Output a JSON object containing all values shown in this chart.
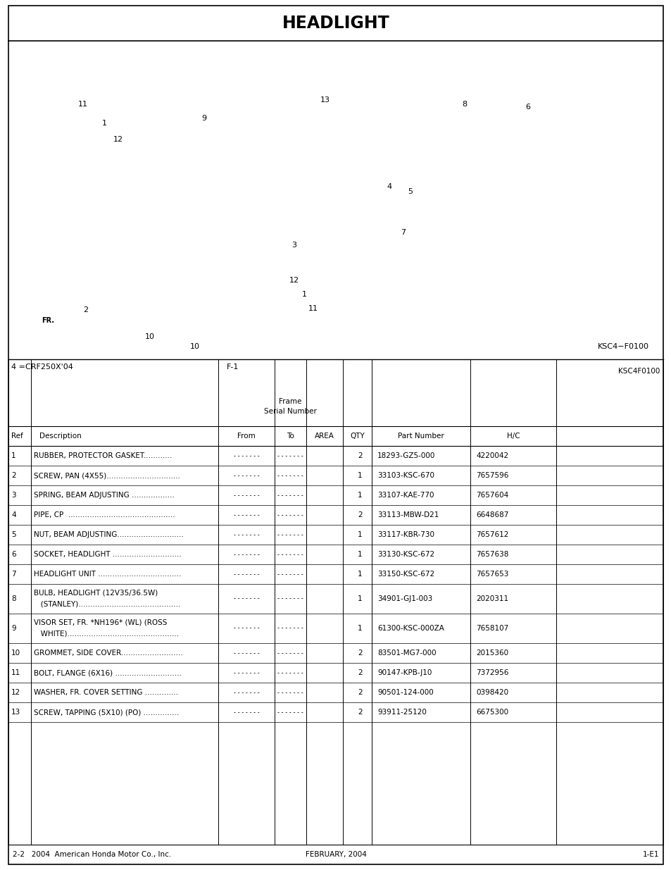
{
  "title": "HEADLIGHT",
  "diagram_label": "KSC4−F0100",
  "diagram_label2": "KSC4F0100",
  "model_note": "4 =CRF250X'04",
  "frame_code": "F-1",
  "parts": [
    {
      "ref": "1",
      "desc1": "RUBBER, PROTECTOR GASKET............",
      "desc2": "",
      "qty": "2",
      "part": "18293-GZ5-000",
      "hc": "4220042"
    },
    {
      "ref": "2",
      "desc1": "SCREW, PAN (4X55)...............................",
      "desc2": "",
      "qty": "1",
      "part": "33103-KSC-670",
      "hc": "7657596"
    },
    {
      "ref": "3",
      "desc1": "SPRING, BEAM ADJUSTING ..................",
      "desc2": "",
      "qty": "1",
      "part": "33107-KAE-770",
      "hc": "7657604"
    },
    {
      "ref": "4",
      "desc1": "PIPE, CP  .............................................",
      "desc2": "",
      "qty": "2",
      "part": "33113-MBW-D21",
      "hc": "6648687"
    },
    {
      "ref": "5",
      "desc1": "NUT, BEAM ADJUSTING............................",
      "desc2": "",
      "qty": "1",
      "part": "33117-KBR-730",
      "hc": "7657612"
    },
    {
      "ref": "6",
      "desc1": "SOCKET, HEADLIGHT .............................",
      "desc2": "",
      "qty": "1",
      "part": "33130-KSC-672",
      "hc": "7657638"
    },
    {
      "ref": "7",
      "desc1": "HEADLIGHT UNIT ...................................",
      "desc2": "",
      "qty": "1",
      "part": "33150-KSC-672",
      "hc": "7657653"
    },
    {
      "ref": "8",
      "desc1": "BULB, HEADLIGHT (12V35/36.5W)",
      "desc2": "   (STANLEY)...........................................",
      "qty": "1",
      "part": "34901-GJ1-003",
      "hc": "2020311"
    },
    {
      "ref": "9",
      "desc1": "VISOR SET, FR. *NH196* (WL) (ROSS",
      "desc2": "   WHITE)...............................................",
      "qty": "1",
      "part": "61300-KSC-000ZA",
      "hc": "7658107"
    },
    {
      "ref": "10",
      "desc1": "GROMMET, SIDE COVER..........................",
      "desc2": "",
      "qty": "2",
      "part": "83501-MG7-000",
      "hc": "2015360"
    },
    {
      "ref": "11",
      "desc1": "BOLT, FLANGE (6X16) ............................",
      "desc2": "",
      "qty": "2",
      "part": "90147-KPB-J10",
      "hc": "7372956"
    },
    {
      "ref": "12",
      "desc1": "WASHER, FR. COVER SETTING ..............",
      "desc2": "",
      "qty": "2",
      "part": "90501-124-000",
      "hc": "0398420"
    },
    {
      "ref": "13",
      "desc1": "SCREW, TAPPING (5X10) (PO) ...............",
      "desc2": "",
      "qty": "2",
      "part": "93911-25120",
      "hc": "6675300"
    }
  ],
  "footer_left": "2-2   2004  American Honda Motor Co., Inc.",
  "footer_center": "FEBRUARY, 2004",
  "footer_right": "1-E1"
}
